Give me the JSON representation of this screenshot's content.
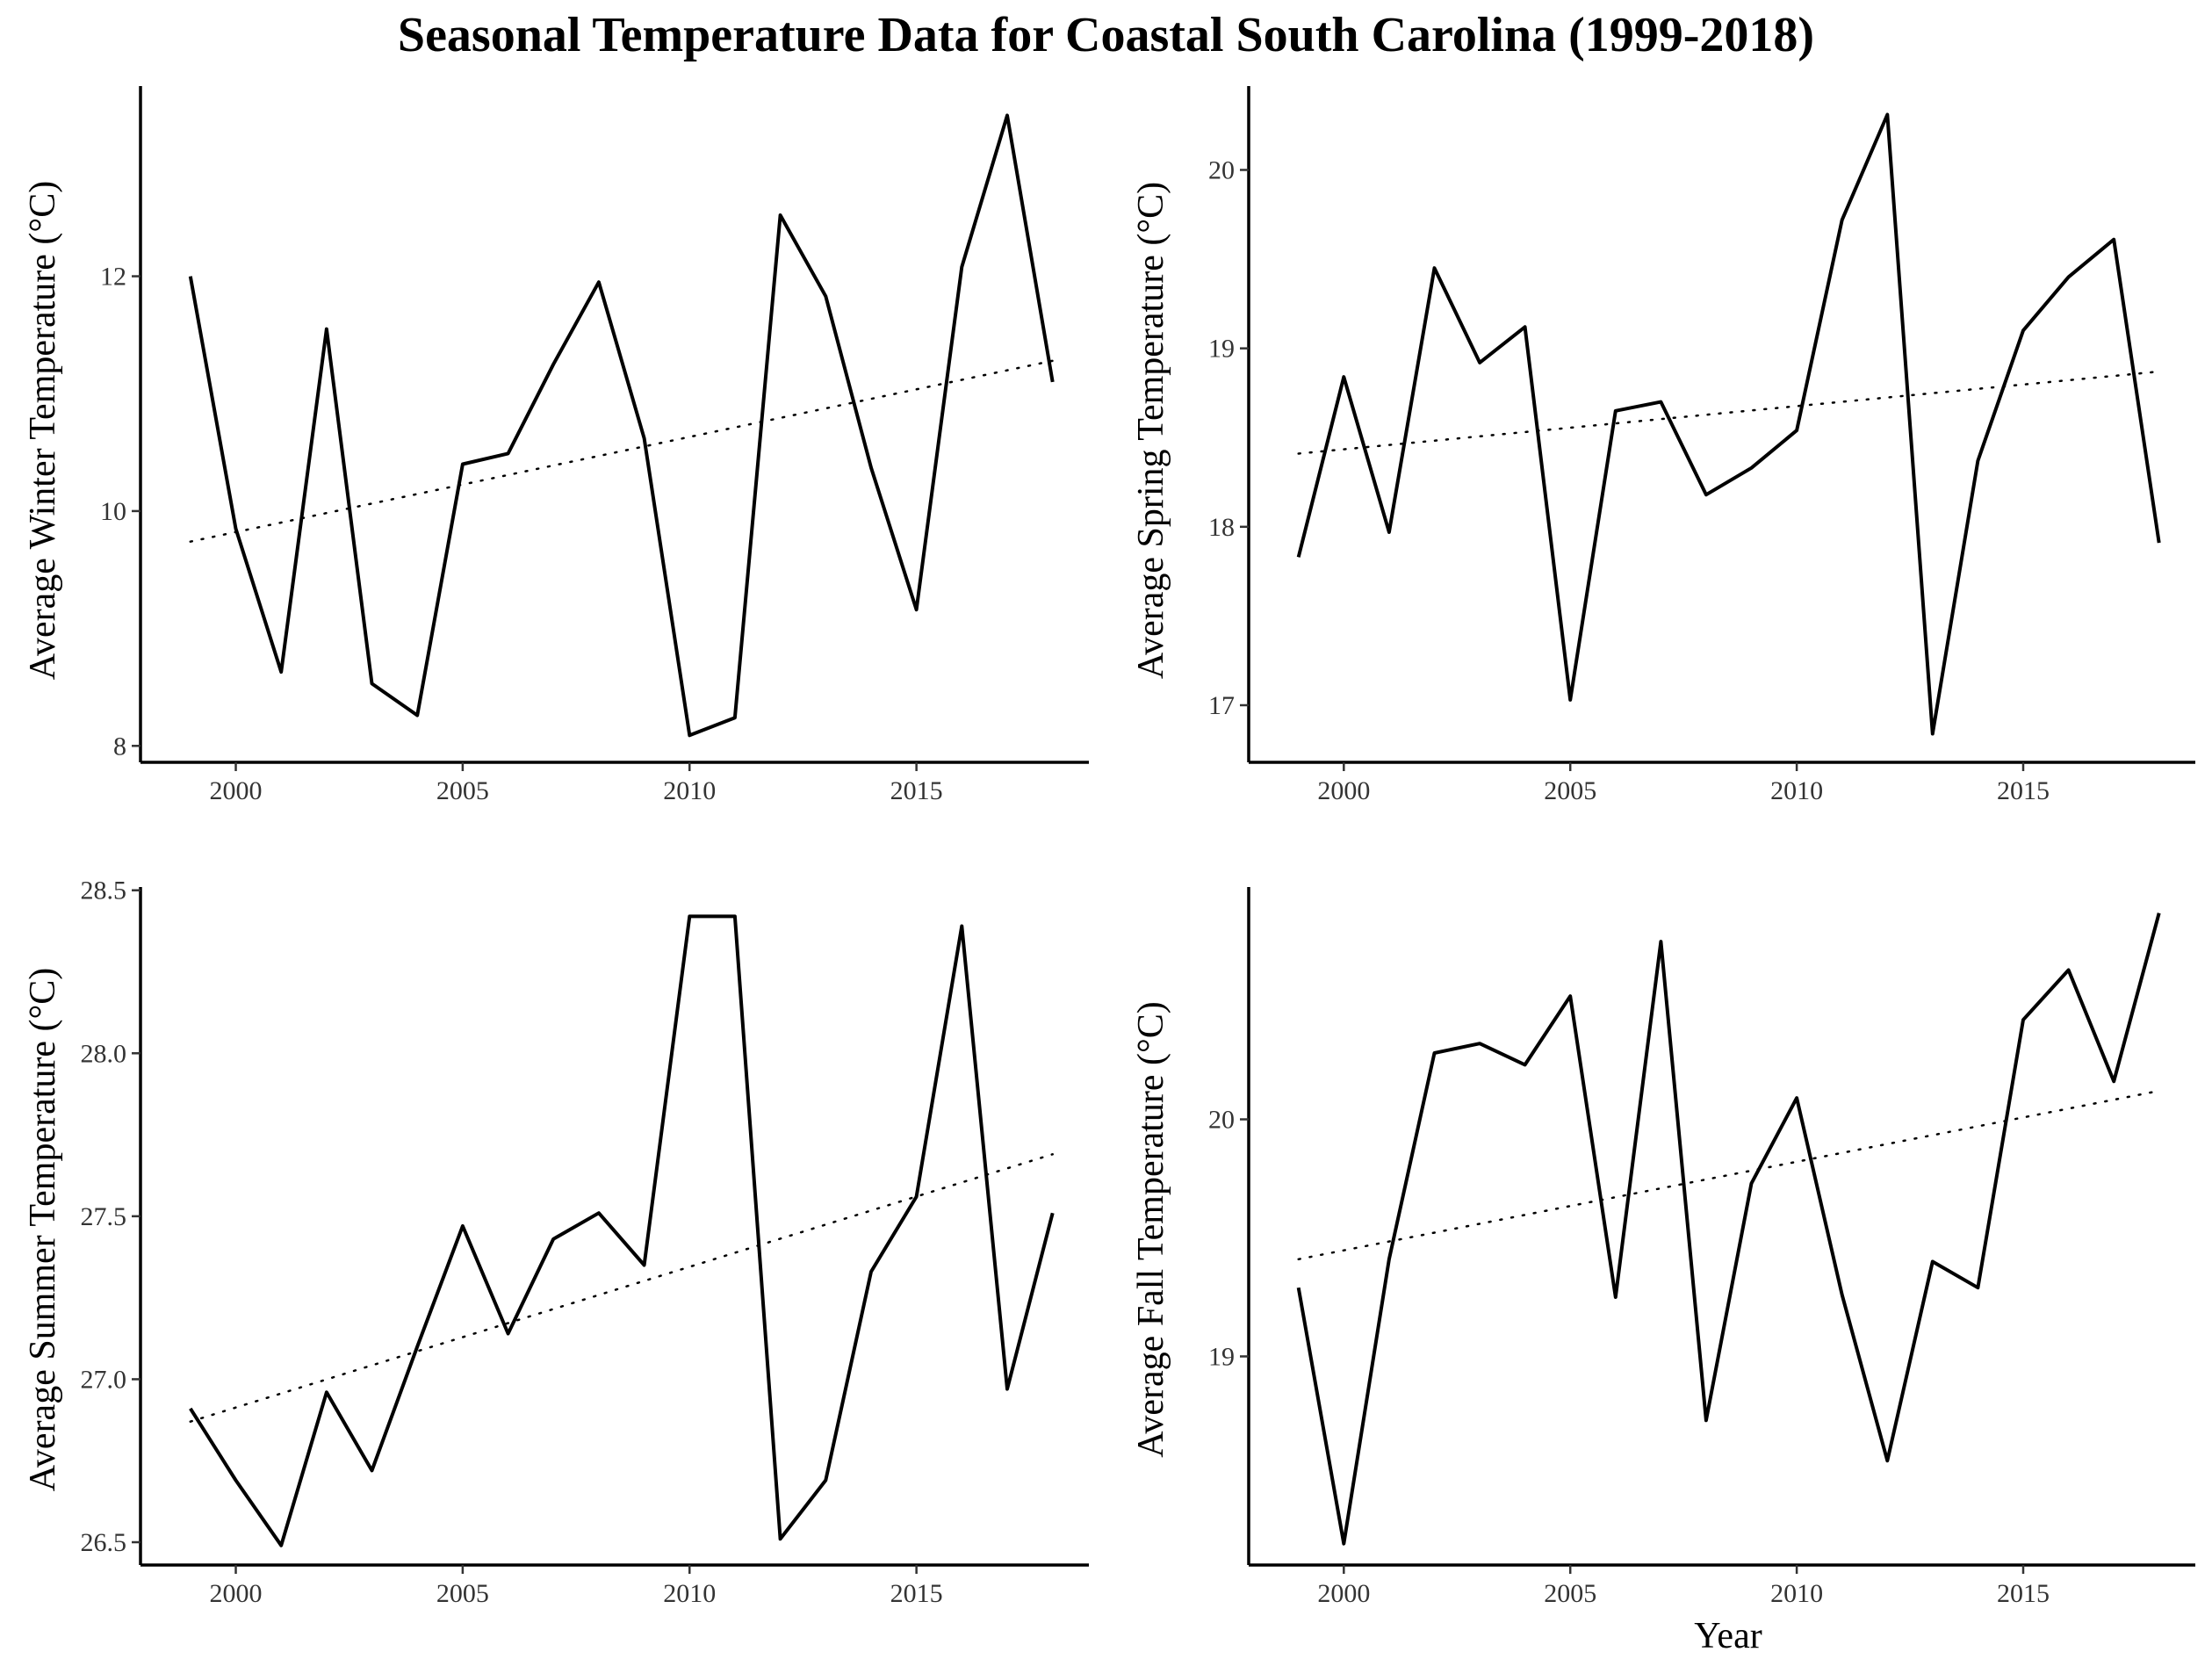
{
  "title": "Seasonal Temperature Data for Coastal South Carolina (1999-2018)",
  "chart_data": [
    {
      "type": "line",
      "xlabel": "",
      "ylabel": "Average Winter Temperature (°C)",
      "x": [
        1999,
        2000,
        2001,
        2002,
        2003,
        2004,
        2005,
        2006,
        2007,
        2008,
        2009,
        2010,
        2011,
        2012,
        2013,
        2014,
        2015,
        2016,
        2017,
        2018
      ],
      "series": [
        {
          "values": [
            12.0,
            9.85,
            8.63,
            11.55,
            8.53,
            8.26,
            10.4,
            10.49,
            11.25,
            11.95,
            10.62,
            8.09,
            8.24,
            12.52,
            11.83,
            10.37,
            9.16,
            12.08,
            13.37,
            11.1
          ]
        },
        {
          "values": [
            9.74,
            11.28
          ],
          "style": "dotted",
          "x": [
            1999,
            2018
          ]
        }
      ],
      "xlim": [
        1997.9,
        2018.8
      ],
      "ylim": [
        7.86,
        13.62
      ],
      "xticks": [
        2000,
        2005,
        2010,
        2015
      ],
      "yticks": [
        8,
        10,
        12
      ],
      "grid": false
    },
    {
      "type": "line",
      "xlabel": "",
      "ylabel": "Average Spring Temperature (°C)",
      "x": [
        1999,
        2000,
        2001,
        2002,
        2003,
        2004,
        2005,
        2006,
        2007,
        2008,
        2009,
        2010,
        2011,
        2012,
        2013,
        2014,
        2015,
        2016,
        2017,
        2018
      ],
      "series": [
        {
          "values": [
            17.83,
            18.84,
            17.97,
            19.45,
            18.92,
            19.12,
            17.03,
            18.65,
            18.7,
            18.18,
            18.33,
            18.54,
            19.72,
            20.31,
            16.84,
            18.37,
            19.1,
            19.4,
            19.61,
            17.91
          ]
        },
        {
          "values": [
            18.41,
            18.87
          ],
          "style": "dotted",
          "x": [
            1999,
            2018
          ]
        }
      ],
      "xlim": [
        1997.9,
        2018.8
      ],
      "ylim": [
        16.68,
        20.47
      ],
      "xticks": [
        2000,
        2005,
        2010,
        2015
      ],
      "yticks": [
        17,
        18,
        19,
        20
      ],
      "grid": false
    },
    {
      "type": "line",
      "xlabel": "",
      "ylabel": "Average Summer Temperature (°C)",
      "x": [
        1999,
        2000,
        2001,
        2002,
        2003,
        2004,
        2005,
        2006,
        2007,
        2008,
        2009,
        2010,
        2011,
        2012,
        2013,
        2014,
        2015,
        2016,
        2017,
        2018
      ],
      "series": [
        {
          "values": [
            26.91,
            26.69,
            26.49,
            26.96,
            26.72,
            27.1,
            27.47,
            27.14,
            27.43,
            27.51,
            27.35,
            28.42,
            28.42,
            26.51,
            26.69,
            27.33,
            27.56,
            28.39,
            26.97,
            27.51
          ]
        },
        {
          "values": [
            26.87,
            27.69
          ],
          "style": "dotted",
          "x": [
            1999,
            2018
          ]
        }
      ],
      "xlim": [
        1997.9,
        2018.8
      ],
      "ylim": [
        26.43,
        28.51
      ],
      "xticks": [
        2000,
        2005,
        2010,
        2015
      ],
      "yticks": [
        "26.5",
        "27.0",
        "27.5",
        "28.0",
        "28.5"
      ],
      "grid": false
    },
    {
      "type": "line",
      "xlabel": "Year",
      "ylabel": "Average Fall Temperature (°C)",
      "x": [
        1999,
        2000,
        2001,
        2002,
        2003,
        2004,
        2005,
        2006,
        2007,
        2008,
        2009,
        2010,
        2011,
        2012,
        2013,
        2014,
        2015,
        2016,
        2017,
        2018
      ],
      "series": [
        {
          "values": [
            19.29,
            18.21,
            19.41,
            20.28,
            20.32,
            20.23,
            20.52,
            19.25,
            20.75,
            18.73,
            19.73,
            20.09,
            19.26,
            18.56,
            19.4,
            19.29,
            20.42,
            20.63,
            20.16,
            20.87
          ]
        },
        {
          "values": [
            19.41,
            20.12
          ],
          "style": "dotted",
          "x": [
            1999,
            2018
          ]
        }
      ],
      "xlim": [
        1997.9,
        2018.8
      ],
      "ylim": [
        18.12,
        20.98
      ],
      "xticks": [
        2000,
        2005,
        2010,
        2015
      ],
      "yticks": [
        19,
        20
      ],
      "grid": false
    }
  ]
}
